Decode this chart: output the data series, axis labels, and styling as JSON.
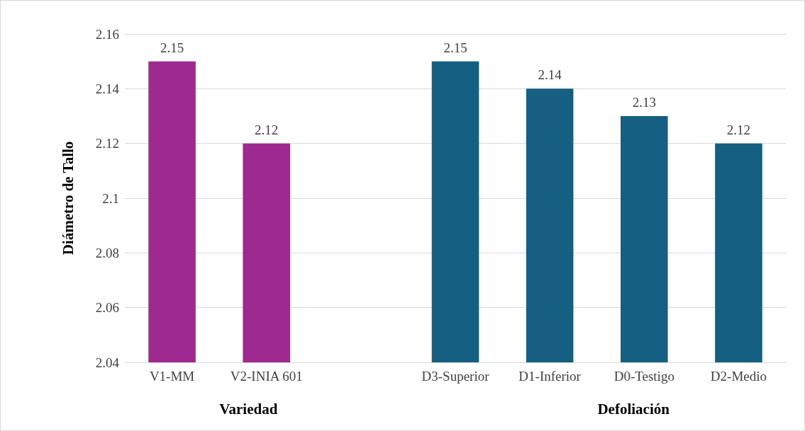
{
  "chart_data": {
    "type": "bar",
    "ylabel": "Diámetro de Tallo",
    "categories": [
      "V1-MM",
      "V2-INIA 601",
      null,
      "D3-Superior",
      "D1-Inferior",
      "D0-Testigo",
      "D2-Medio"
    ],
    "values": [
      2.15,
      2.12,
      null,
      2.15,
      2.14,
      2.13,
      2.12
    ],
    "colors": [
      "#9e2a8f",
      "#9e2a8f",
      "#156082",
      "#156082",
      "#156082",
      "#156082",
      "#156082"
    ],
    "ylim": [
      2.04,
      2.16
    ],
    "yticks": [
      2.04,
      2.06,
      2.08,
      2.1,
      2.12,
      2.14,
      2.16
    ],
    "grid": "y",
    "data_labels": true,
    "annotations": [
      "Variedad",
      "Defoliación"
    ]
  }
}
